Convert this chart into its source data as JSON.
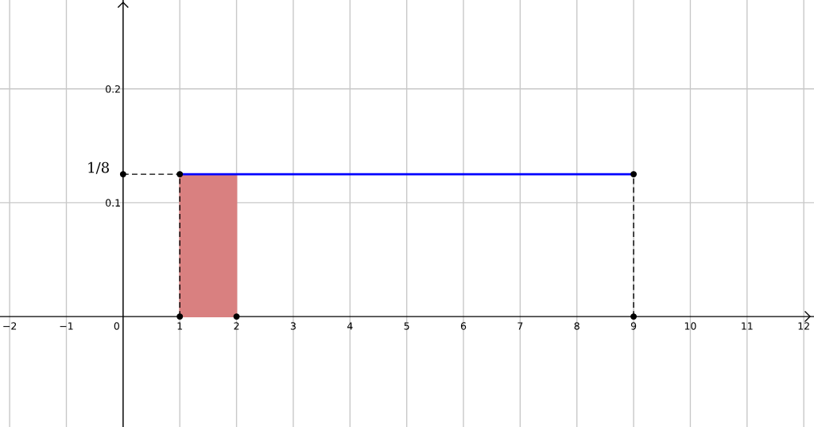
{
  "chart_data": {
    "type": "line",
    "series": [
      {
        "type": "area",
        "color": "#d98080",
        "x": [
          1,
          2
        ],
        "values": [
          0.125,
          0.125
        ]
      },
      {
        "color": "#000000",
        "line_style": "dashed",
        "x": [
          0,
          1
        ],
        "values": [
          0.125,
          0.125
        ]
      },
      {
        "color": "#000000",
        "line_style": "dashed",
        "x": [
          1,
          1
        ],
        "values": [
          0,
          0.125
        ]
      },
      {
        "color": "#000000",
        "line_style": "dashed",
        "x": [
          9,
          9
        ],
        "values": [
          0,
          0.125
        ]
      },
      {
        "color": "#0000ff",
        "line_style": "solid",
        "x": [
          1,
          9
        ],
        "values": [
          0.125,
          0.125
        ]
      },
      {
        "type": "scatter",
        "color": "#000000",
        "marker": "circle",
        "x": [
          0,
          1,
          9,
          1,
          2,
          9
        ],
        "values": [
          0.125,
          0.125,
          0.125,
          0,
          0,
          0
        ]
      }
    ],
    "xlim": [
      -2.17,
      12.18
    ],
    "ylim": [
      -0.097,
      0.278
    ],
    "xticks": [
      {
        "value": -2,
        "label": "−2"
      },
      {
        "value": -1,
        "label": "−1"
      },
      0,
      1,
      2,
      3,
      4,
      5,
      6,
      7,
      8,
      9,
      10,
      11,
      12
    ],
    "yticks": [
      0.1,
      0.2
    ],
    "grid": true,
    "annotations": [
      {
        "text": "1/8",
        "x": 0,
        "y": 0.125
      }
    ]
  }
}
